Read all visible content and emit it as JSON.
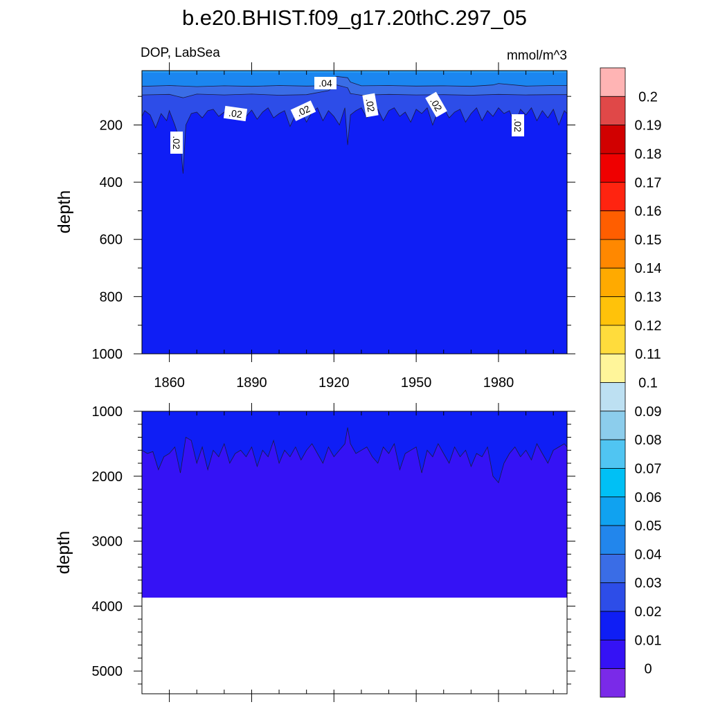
{
  "chart_data": [
    {
      "panel": "upper",
      "type": "heatmap",
      "subtype": "filled-contour (depth vs time)",
      "title": "b.e20.BHIST.f09_g17.20thC.297_05",
      "left_label": "DOP, LabSea",
      "right_label": "mmol/m^3",
      "xlabel": "",
      "ylabel": "depth",
      "xlim": [
        1850,
        2005
      ],
      "ylim": [
        1000,
        10
      ],
      "y_reversed": true,
      "xticks": [
        1860,
        1890,
        1920,
        1950,
        1980
      ],
      "yticks": [
        200,
        400,
        600,
        800,
        1000
      ],
      "contour_labels": [
        ".04",
        ".02",
        ".02",
        ".02",
        ".02",
        ".02",
        ".02"
      ],
      "series": [
        {
          "name": ".04",
          "fill": "#1b86f0",
          "x": [
            1850,
            1860,
            1870,
            1880,
            1890,
            1900,
            1910,
            1916,
            1918,
            1921,
            1925,
            1926,
            1930,
            1940,
            1950,
            1960,
            1970,
            1978,
            1980,
            1990,
            2000,
            2005
          ],
          "y": [
            65,
            62,
            66,
            63,
            65,
            62,
            64,
            63,
            45,
            30,
            35,
            50,
            63,
            62,
            64,
            63,
            65,
            60,
            55,
            64,
            62,
            62
          ]
        },
        {
          "name": ".03",
          "fill": "#3a6de6",
          "x": [
            1850,
            1860,
            1865,
            1870,
            1880,
            1890,
            1900,
            1910,
            1918,
            1921,
            1925,
            1926,
            1930,
            1940,
            1950,
            1960,
            1970,
            1980,
            1990,
            2000,
            2005
          ],
          "y": [
            95,
            93,
            105,
            92,
            95,
            92,
            96,
            94,
            80,
            60,
            70,
            90,
            96,
            93,
            95,
            94,
            96,
            93,
            95,
            94,
            94
          ]
        },
        {
          "name": ".02",
          "fill": "#2d4de8",
          "x": [
            1850,
            1851,
            1853,
            1855,
            1857,
            1859,
            1860,
            1862,
            1864,
            1865,
            1866,
            1868,
            1870,
            1872,
            1874,
            1876,
            1878,
            1880,
            1882,
            1884,
            1886,
            1888,
            1890,
            1892,
            1894,
            1896,
            1898,
            1900,
            1902,
            1904,
            1906,
            1908,
            1910,
            1912,
            1914,
            1916,
            1918,
            1920,
            1922,
            1924,
            1925,
            1926,
            1928,
            1930,
            1932,
            1934,
            1936,
            1938,
            1940,
            1942,
            1944,
            1946,
            1948,
            1950,
            1952,
            1954,
            1956,
            1958,
            1960,
            1962,
            1964,
            1966,
            1968,
            1970,
            1972,
            1974,
            1976,
            1978,
            1980,
            1982,
            1984,
            1986,
            1988,
            1990,
            1992,
            1994,
            1996,
            1998,
            2000,
            2002,
            2004,
            2005
          ],
          "y": [
            170,
            150,
            165,
            210,
            160,
            185,
            150,
            200,
            260,
            370,
            200,
            160,
            155,
            175,
            150,
            145,
            170,
            155,
            140,
            165,
            150,
            170,
            148,
            180,
            155,
            140,
            175,
            160,
            150,
            205,
            165,
            150,
            190,
            155,
            140,
            185,
            150,
            170,
            200,
            140,
            270,
            165,
            150,
            140,
            175,
            160,
            145,
            185,
            150,
            140,
            170,
            155,
            190,
            145,
            160,
            140,
            200,
            150,
            140,
            175,
            155,
            145,
            190,
            160,
            140,
            185,
            150,
            170,
            140,
            160,
            150,
            200,
            145,
            165,
            140,
            185,
            150,
            175,
            145,
            200,
            150,
            160
          ]
        },
        {
          "name": ".01",
          "fill": "#0f1ef5",
          "x": [
            1850,
            2005
          ],
          "y": [
            1000,
            1000
          ]
        }
      ]
    },
    {
      "panel": "lower",
      "type": "heatmap",
      "subtype": "filled-contour (depth vs time)",
      "xlabel": "",
      "ylabel": "depth",
      "xlim": [
        1850,
        2005
      ],
      "ylim": [
        5350,
        1000
      ],
      "y_reversed": true,
      "yticks": [
        1000,
        2000,
        3000,
        4000,
        5000
      ],
      "bottom_depth": 3870,
      "series": [
        {
          "name": "0.01",
          "fill": "#0f1ef5",
          "x": [
            1850,
            1852,
            1854,
            1856,
            1858,
            1860,
            1862,
            1864,
            1866,
            1868,
            1870,
            1872,
            1874,
            1876,
            1878,
            1880,
            1882,
            1884,
            1886,
            1888,
            1890,
            1892,
            1894,
            1896,
            1898,
            1900,
            1902,
            1904,
            1906,
            1908,
            1910,
            1912,
            1914,
            1916,
            1918,
            1920,
            1922,
            1924,
            1925,
            1926,
            1928,
            1930,
            1932,
            1934,
            1936,
            1938,
            1940,
            1942,
            1944,
            1946,
            1948,
            1950,
            1952,
            1954,
            1956,
            1958,
            1960,
            1962,
            1964,
            1966,
            1968,
            1970,
            1972,
            1974,
            1976,
            1978,
            1980,
            1982,
            1984,
            1986,
            1988,
            1990,
            1992,
            1994,
            1996,
            1998,
            2000,
            2002,
            2004,
            2005
          ],
          "y": [
            1600,
            1650,
            1620,
            1900,
            1700,
            1650,
            1550,
            1950,
            1400,
            1450,
            1800,
            1550,
            1900,
            1600,
            1700,
            1500,
            1800,
            1650,
            1600,
            1700,
            1550,
            1850,
            1600,
            1700,
            1450,
            1800,
            1600,
            1700,
            1550,
            1750,
            1600,
            1500,
            1650,
            1800,
            1550,
            1700,
            1600,
            1500,
            1250,
            1500,
            1650,
            1600,
            1550,
            1700,
            1800,
            1550,
            1650,
            1500,
            1900,
            1650,
            1600,
            1550,
            1950,
            1600,
            1700,
            1500,
            1650,
            1800,
            1550,
            1700,
            1600,
            1850,
            1650,
            1700,
            1550,
            2000,
            2100,
            1800,
            1650,
            1550,
            1700,
            1600,
            1750,
            1500,
            1650,
            1800,
            1600,
            1550,
            1500,
            1550
          ]
        },
        {
          "name": "0",
          "fill": "#3512f5",
          "x": [
            1850,
            2005
          ],
          "y": [
            3870,
            3870
          ]
        }
      ]
    },
    {
      "panel": "colorbar",
      "type": "heatmap",
      "labels": [
        "0.2",
        "0.19",
        "0.18",
        "0.17",
        "0.16",
        "0.15",
        "0.14",
        "0.13",
        "0.12",
        "0.11",
        "0.1",
        "0.09",
        "0.08",
        "0.07",
        "0.06",
        "0.05",
        "0.04",
        "0.03",
        "0.02",
        "0.01",
        "0"
      ],
      "colors": [
        "#ffb4b4",
        "#e04848",
        "#d10000",
        "#ef0000",
        "#ff2410",
        "#ff5e00",
        "#ff8800",
        "#ffaa00",
        "#ffc20a",
        "#ffdc3c",
        "#fff59a",
        "#bde0f2",
        "#8ccdec",
        "#50c5f2",
        "#00c0f5",
        "#10a2f0",
        "#2286ec",
        "#3a6de6",
        "#2d4de8",
        "#0f1ef5",
        "#3512f5",
        "#7a2ae8"
      ]
    }
  ]
}
